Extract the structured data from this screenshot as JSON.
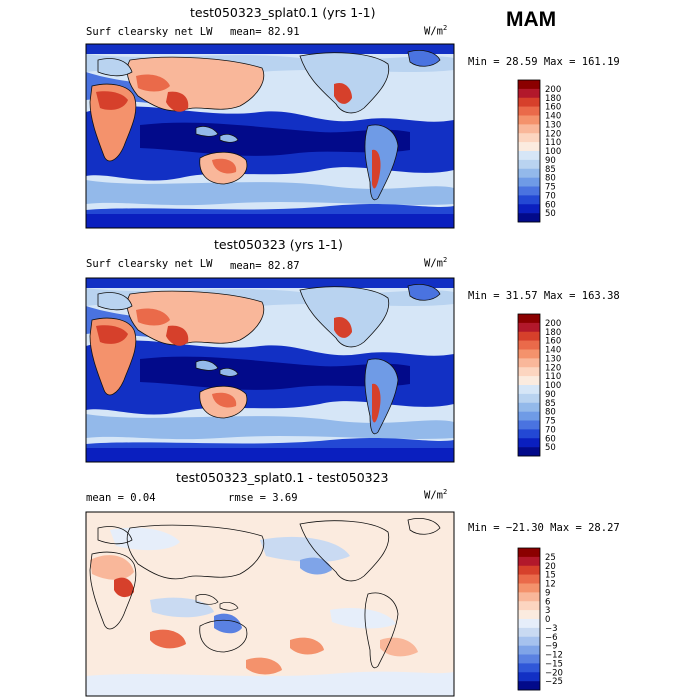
{
  "season": "MAM",
  "panels": [
    {
      "title": "test050323_splat0.1 (yrs 1-1)",
      "left_label": "Surf clearsky net LW",
      "stat_text": "mean=  82.91",
      "units_base": "W/m",
      "units_exp": "2",
      "minmax": "Min =  28.59 Max = 161.19"
    },
    {
      "title": "test050323 (yrs 1-1)",
      "left_label": "Surf clearsky net LW",
      "stat_text": "mean=  82.87",
      "units_base": "W/m",
      "units_exp": "2",
      "minmax": "Min =  31.57 Max = 163.38"
    },
    {
      "title": "test050323_splat0.1 - test050323",
      "left_label": "mean =   0.04",
      "stat_text": "rmse =   3.69",
      "units_base": "W/m",
      "units_exp": "2",
      "minmax": "Min = −21.30 Max =  28.27"
    }
  ],
  "chart_data": [
    {
      "type": "heatmap",
      "title": "test050323_splat0.1 (yrs 1-1)",
      "variable": "Surf clearsky net LW",
      "units": "W/m2",
      "mean": 82.91,
      "min": 28.59,
      "max": 161.19,
      "colorbar_levels": [
        "200",
        "180",
        "160",
        "140",
        "130",
        "120",
        "110",
        "100",
        "90",
        "85",
        "80",
        "75",
        "70",
        "60",
        "50"
      ],
      "colorbar_colors": [
        "#8b0000",
        "#b2182b",
        "#d6402b",
        "#ea6a4a",
        "#f4926c",
        "#f9b79a",
        "#fcd5c0",
        "#fbebdf",
        "#d6e6f7",
        "#b9d3f0",
        "#93b9ea",
        "#6f9be6",
        "#4a73e0",
        "#2348d4",
        "#0a1fbf",
        "#020a8a"
      ]
    },
    {
      "type": "heatmap",
      "title": "test050323 (yrs 1-1)",
      "variable": "Surf clearsky net LW",
      "units": "W/m2",
      "mean": 82.87,
      "min": 31.57,
      "max": 163.38,
      "colorbar_levels": [
        "200",
        "180",
        "160",
        "140",
        "130",
        "120",
        "110",
        "100",
        "90",
        "85",
        "80",
        "75",
        "70",
        "60",
        "50"
      ],
      "colorbar_colors": [
        "#8b0000",
        "#b2182b",
        "#d6402b",
        "#ea6a4a",
        "#f4926c",
        "#f9b79a",
        "#fcd5c0",
        "#fbebdf",
        "#d6e6f7",
        "#b9d3f0",
        "#93b9ea",
        "#6f9be6",
        "#4a73e0",
        "#2348d4",
        "#0a1fbf",
        "#020a8a"
      ]
    },
    {
      "type": "heatmap",
      "title": "test050323_splat0.1 - test050323",
      "units": "W/m2",
      "mean": 0.04,
      "rmse": 3.69,
      "min": -21.3,
      "max": 28.27,
      "colorbar_levels": [
        "25",
        "20",
        "15",
        "12",
        "9",
        "6",
        "3",
        "0",
        "−3",
        "−6",
        "−9",
        "−12",
        "−15",
        "−20",
        "−25"
      ],
      "colorbar_colors": [
        "#8b0000",
        "#b2182b",
        "#d6402b",
        "#ea6a4a",
        "#f4926c",
        "#f9b79a",
        "#fcd5c0",
        "#fbebdf",
        "#e6eefa",
        "#c9daf2",
        "#a6c2ee",
        "#7fa4e8",
        "#5a81e2",
        "#3057d8",
        "#1230c4",
        "#020a8a"
      ]
    }
  ]
}
